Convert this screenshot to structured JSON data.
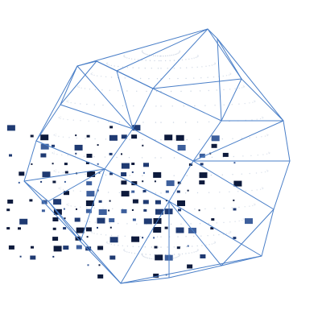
{
  "artwork": {
    "subject": "wireframe-polyhedron-with-data-squares",
    "colors": {
      "background": "#ffffff",
      "wireframe": "#4a7fc8",
      "inner_dots": "#b9c6d8",
      "square_dark": "#0d1a3c",
      "square_mid": "#1f3a72",
      "square_light": "#3d5f9c"
    }
  }
}
